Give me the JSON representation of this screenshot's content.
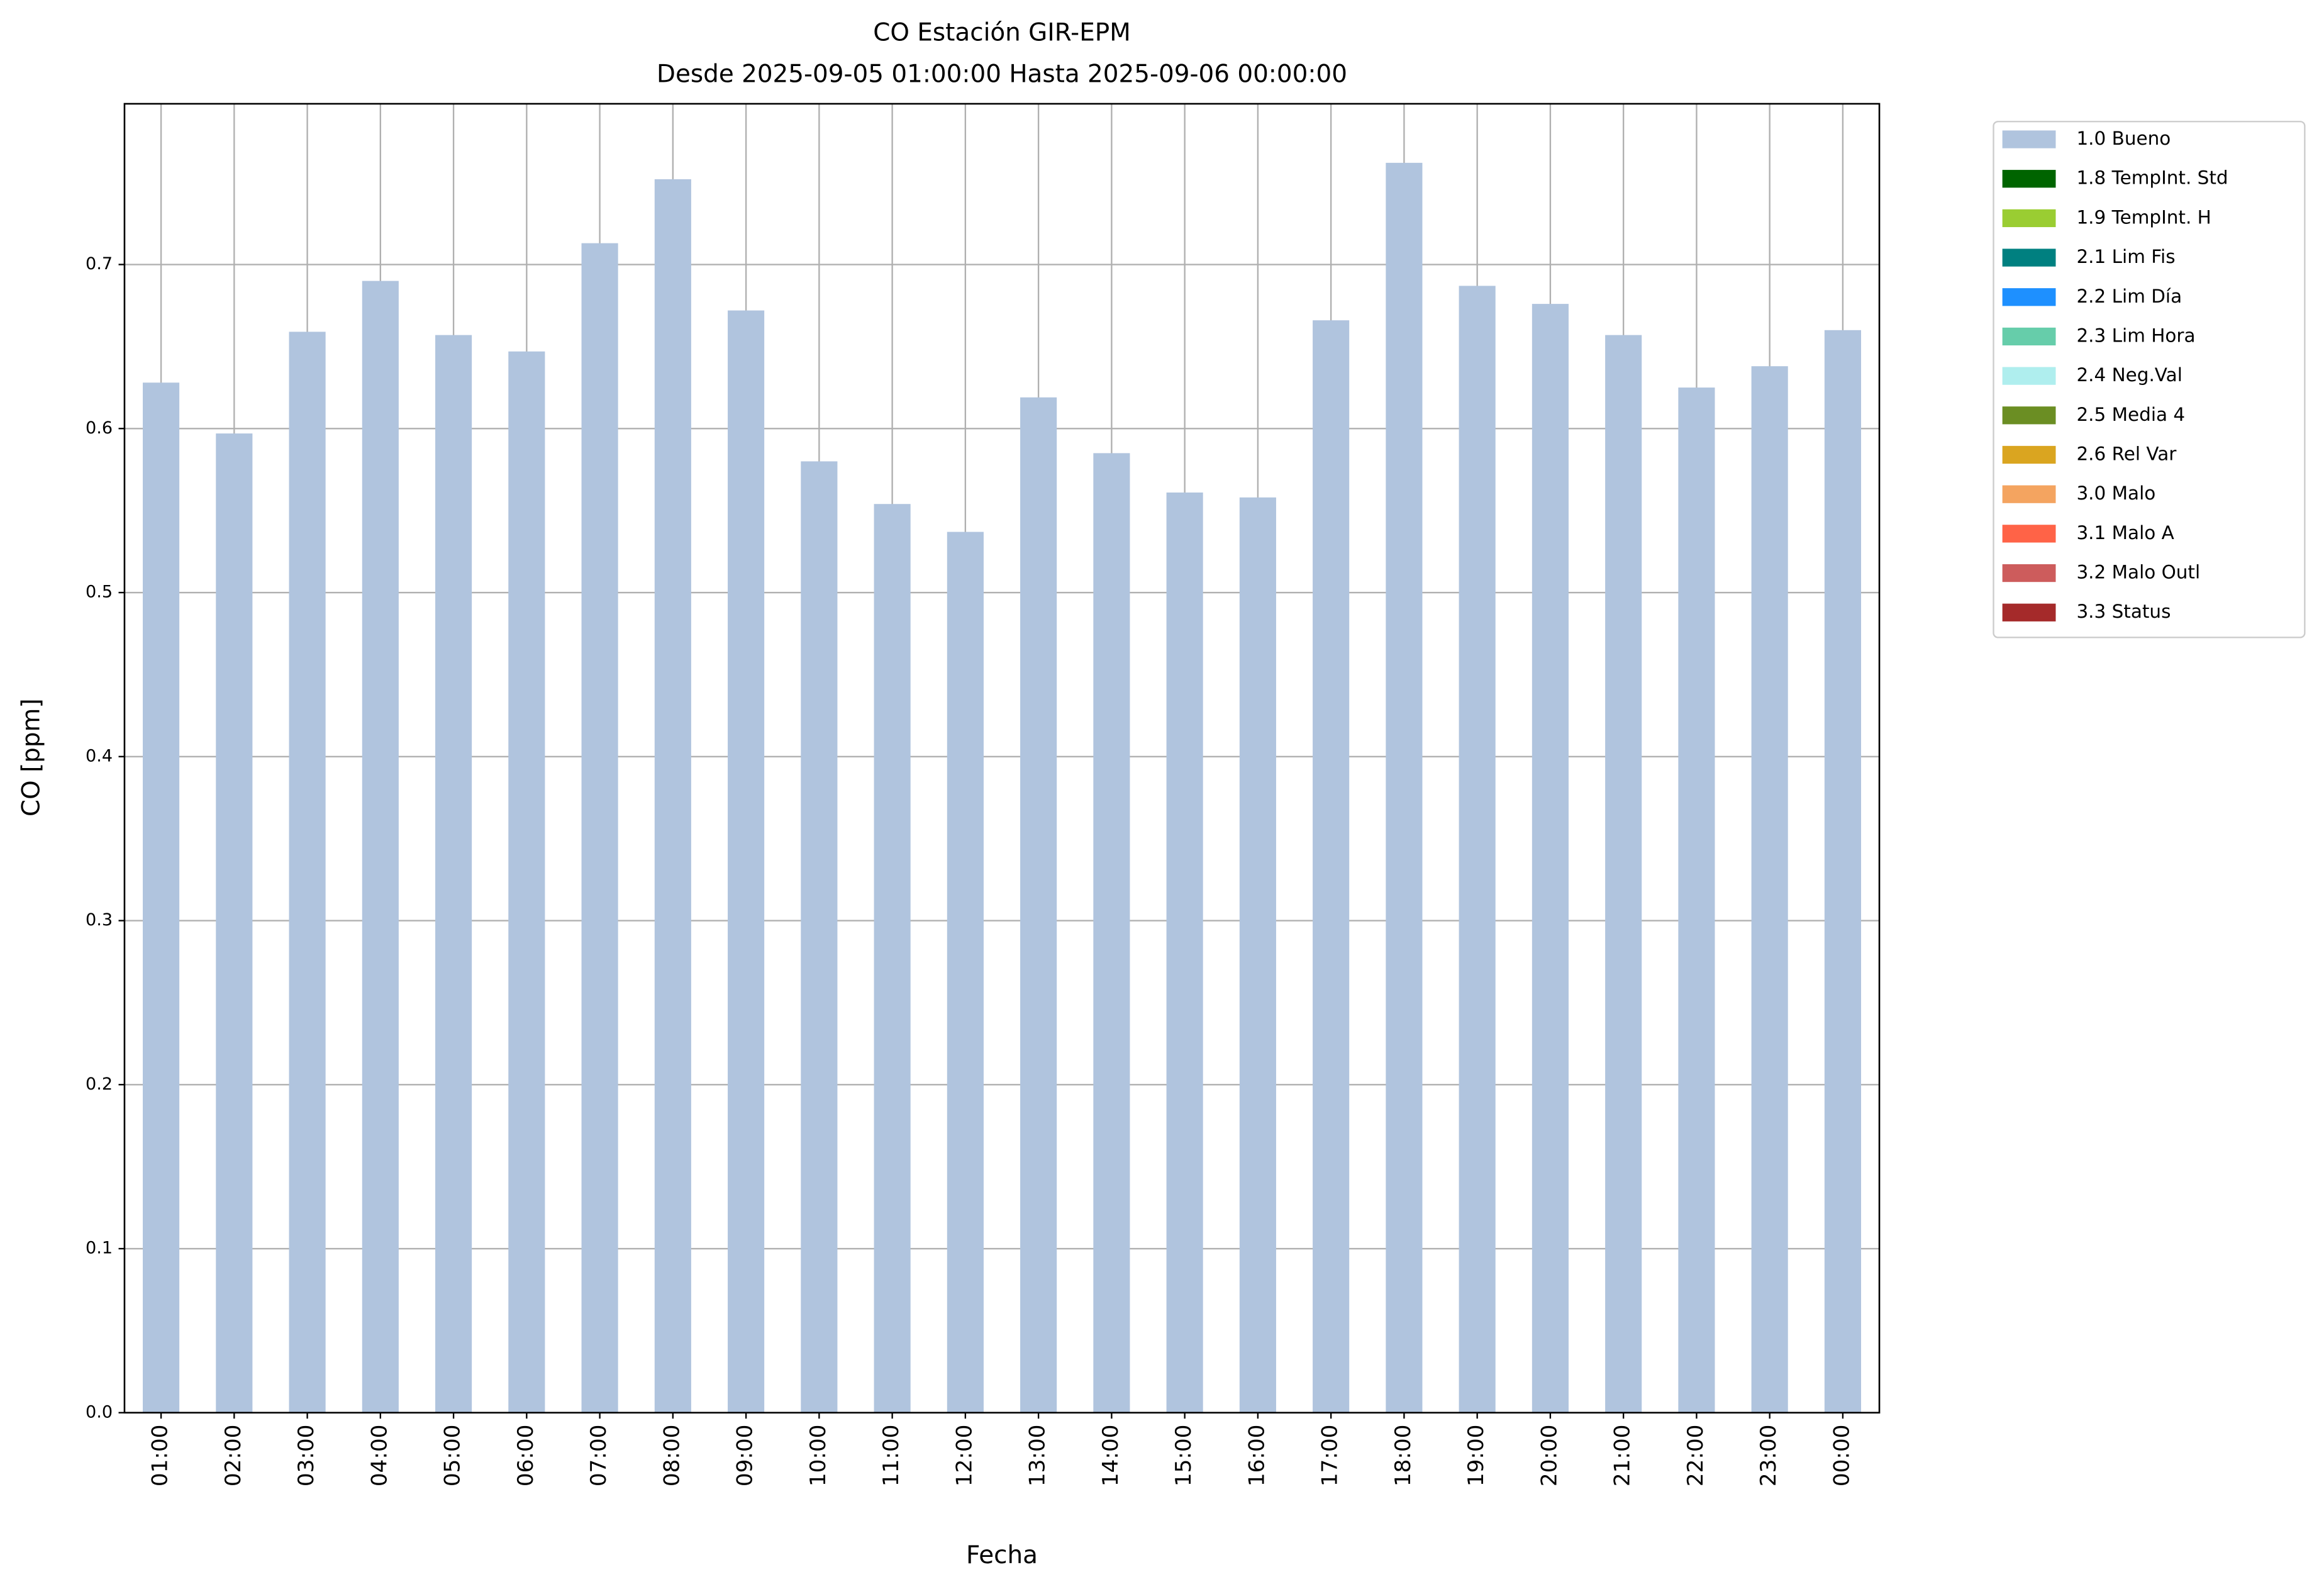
{
  "chart_data": {
    "type": "bar",
    "title": "CO Estación GIR-EPM",
    "subtitle": "Desde 2025-09-05 01:00:00 Hasta 2025-09-06 00:00:00",
    "x_label": "Fecha",
    "y_label": "CO [ppm]",
    "categories": [
      "01:00",
      "02:00",
      "03:00",
      "04:00",
      "05:00",
      "06:00",
      "07:00",
      "08:00",
      "09:00",
      "10:00",
      "11:00",
      "12:00",
      "13:00",
      "14:00",
      "15:00",
      "16:00",
      "17:00",
      "18:00",
      "19:00",
      "20:00",
      "21:00",
      "22:00",
      "23:00",
      "00:00"
    ],
    "series": [
      {
        "name": "1.0 Bueno",
        "color": "#b0c4de",
        "values": [
          0.628,
          0.597,
          0.659,
          0.69,
          0.657,
          0.647,
          0.713,
          0.752,
          0.672,
          0.58,
          0.554,
          0.537,
          0.619,
          0.585,
          0.561,
          0.558,
          0.666,
          0.762,
          0.687,
          0.676,
          0.657,
          0.625,
          0.638,
          0.66
        ]
      }
    ],
    "legend_items": [
      {
        "name": "1.8 TempInt. Std",
        "color": "#006400"
      },
      {
        "name": "1.9 TempInt. H",
        "color": "#9acd32"
      },
      {
        "name": "2.1 Lim Fis",
        "color": "#008080"
      },
      {
        "name": "2.2 Lim Día",
        "color": "#1e90ff"
      },
      {
        "name": "2.3 Lim Hora",
        "color": "#66cdaa"
      },
      {
        "name": "2.4 Neg.Val",
        "color": "#afeeee"
      },
      {
        "name": "2.5 Media 4",
        "color": "#6b8e23"
      },
      {
        "name": "2.6 Rel Var",
        "color": "#daa520"
      },
      {
        "name": "3.0 Malo",
        "color": "#f4a460"
      },
      {
        "name": "3.1 Malo A",
        "color": "#ff6347"
      },
      {
        "name": "3.2 Malo Outl",
        "color": "#cd5c5c"
      },
      {
        "name": "3.3 Status",
        "color": "#a52a2a"
      }
    ],
    "ylim": [
      0,
      0.798
    ],
    "yticks": [
      {
        "value": 0,
        "label": "0.0"
      },
      0.1,
      0.2,
      0.3,
      0.4,
      0.5,
      0.6,
      0.7
    ],
    "grid": true,
    "legend_position": "outside-right"
  }
}
